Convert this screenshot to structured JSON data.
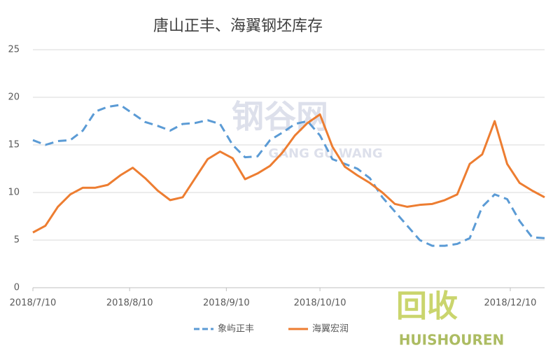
{
  "chart_data": {
    "type": "line",
    "title": "唐山正丰、海翼钢坯库存",
    "x": [
      "2018/7/10",
      "2018/7/14",
      "2018/7/18",
      "2018/7/22",
      "2018/7/26",
      "2018/7/30",
      "2018/8/3",
      "2018/8/7",
      "2018/8/11",
      "2018/8/15",
      "2018/8/19",
      "2018/8/23",
      "2018/8/27",
      "2018/8/31",
      "2018/9/4",
      "2018/9/8",
      "2018/9/12",
      "2018/9/16",
      "2018/9/20",
      "2018/9/24",
      "2018/9/28",
      "2018/10/2",
      "2018/10/6",
      "2018/10/10",
      "2018/10/14",
      "2018/10/18",
      "2018/10/22",
      "2018/10/26",
      "2018/10/30",
      "2018/11/3",
      "2018/11/7",
      "2018/11/11",
      "2018/11/15",
      "2018/11/19",
      "2018/11/23",
      "2018/11/27",
      "2018/12/1",
      "2018/12/5",
      "2018/12/9",
      "2018/12/13",
      "2018/12/17",
      "2018/12/21"
    ],
    "series": [
      {
        "name": "象屿正丰",
        "color": "#5b9bd5",
        "dashed": true,
        "values": [
          15.5,
          15.0,
          15.4,
          15.5,
          16.5,
          18.5,
          19.0,
          19.2,
          18.3,
          17.4,
          17.0,
          16.5,
          17.2,
          17.3,
          17.6,
          17.2,
          15.0,
          13.7,
          13.8,
          15.5,
          16.3,
          17.2,
          17.5,
          16.0,
          13.5,
          13.0,
          12.5,
          11.5,
          9.5,
          8.0,
          6.5,
          5.0,
          4.4,
          4.4,
          4.6,
          5.2,
          8.5,
          9.8,
          9.3,
          7.0,
          5.3,
          5.2
        ]
      },
      {
        "name": "海翼宏润",
        "color": "#ed7d31",
        "dashed": false,
        "values": [
          5.8,
          6.5,
          8.5,
          9.8,
          10.5,
          10.5,
          10.8,
          11.8,
          12.6,
          11.5,
          10.2,
          9.2,
          9.5,
          11.5,
          13.5,
          14.3,
          13.6,
          11.4,
          12.0,
          12.8,
          14.2,
          16.0,
          17.3,
          18.2,
          14.8,
          12.7,
          11.8,
          11.0,
          10.0,
          8.8,
          8.5,
          8.7,
          8.8,
          9.2,
          9.8,
          13.0,
          14.0,
          17.5,
          13.0,
          11.0,
          10.2,
          9.5
        ]
      }
    ],
    "xlim": [
      "2018/7/10",
      "2018/12/21"
    ],
    "xticks": [
      "2018/7/10",
      "2018/8/10",
      "2018/9/10",
      "2018/10/10",
      "2018/12/10"
    ],
    "ylim": [
      0,
      25
    ],
    "yticks": [
      0,
      5,
      10,
      15,
      20,
      25
    ],
    "grid": true,
    "watermarks": [
      "钢谷网",
      "GANG GU WANG",
      "回收",
      "HUISHOUREN"
    ]
  }
}
